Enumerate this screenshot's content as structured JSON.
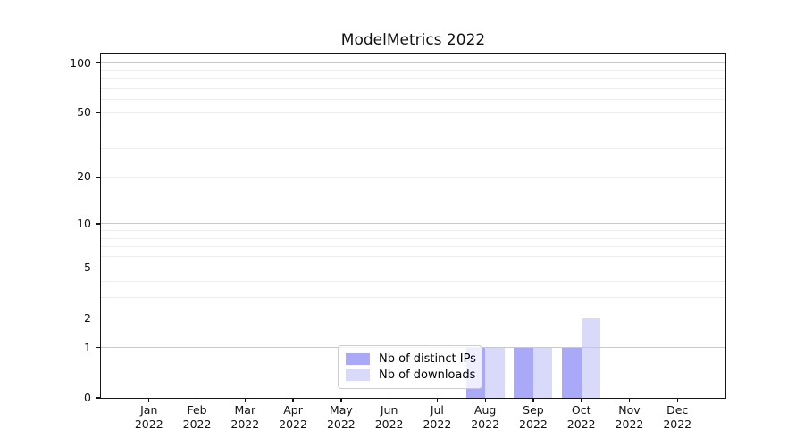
{
  "chart_data": {
    "type": "bar",
    "title": "ModelMetrics 2022",
    "categories": [
      "Jan 2022",
      "Feb 2022",
      "Mar 2022",
      "Apr 2022",
      "May 2022",
      "Jun 2022",
      "Jul 2022",
      "Aug 2022",
      "Sep 2022",
      "Oct 2022",
      "Nov 2022",
      "Dec 2022"
    ],
    "series": [
      {
        "name": "Nb of distinct IPs",
        "color": "#a9a9f7",
        "values": [
          0,
          0,
          0,
          0,
          0,
          0,
          0,
          1,
          1,
          1,
          0,
          0
        ]
      },
      {
        "name": "Nb of downloads",
        "color": "#d9d9f9",
        "values": [
          0,
          0,
          0,
          0,
          0,
          0,
          0,
          1,
          1,
          2,
          0,
          0
        ]
      }
    ],
    "xlabel": "",
    "ylabel": "",
    "y_axis": {
      "scale": "log1p",
      "ylim": [
        0,
        114
      ],
      "tick_values": [
        0,
        1,
        2,
        5,
        10,
        20,
        50,
        100
      ],
      "tick_labels": [
        "0",
        "1",
        "2",
        "5",
        "10",
        "20",
        "50",
        "100"
      ],
      "major_gridlines": [
        1,
        10,
        100
      ],
      "minor_gridlines": [
        2,
        3,
        4,
        6,
        7,
        8,
        9,
        20,
        30,
        40,
        50,
        60,
        70,
        80,
        90
      ]
    },
    "legend": {
      "position": "lower center"
    },
    "grid": true
  }
}
